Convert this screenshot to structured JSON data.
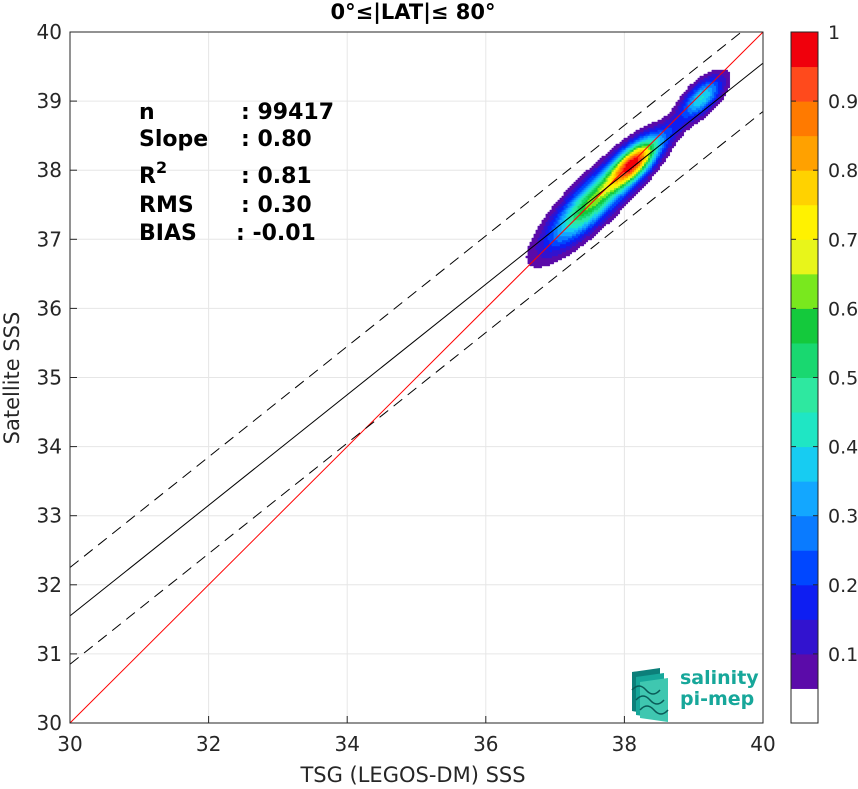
{
  "chart_data": {
    "type": "contour-density-scatter",
    "title": "0°≤|LAT|≤ 80°",
    "xlabel": "TSG (LEGOS-DM) SSS",
    "ylabel": "Satellite SSS",
    "xlim": [
      30,
      40
    ],
    "ylim": [
      30,
      40
    ],
    "xticks": [
      30,
      32,
      34,
      36,
      38,
      40
    ],
    "yticks": [
      30,
      31,
      32,
      33,
      34,
      35,
      36,
      37,
      38,
      39,
      40
    ],
    "grid": true,
    "stats": [
      {
        "name": "n",
        "sup": "",
        "value": ": 99417"
      },
      {
        "name": "Slope",
        "sup": "",
        "value": ": 0.80"
      },
      {
        "name": "R",
        "sup": "2",
        "value": ": 0.81"
      },
      {
        "name": "RMS",
        "sup": "",
        "value": ": 0.30"
      },
      {
        "name": "BIAS",
        "sup": "",
        "value": ": -0.01"
      }
    ],
    "lines": [
      {
        "kind": "identity",
        "x": [
          30,
          40
        ],
        "y": [
          30,
          40
        ],
        "color": "#ff0000",
        "style": "solid"
      },
      {
        "kind": "regression",
        "x": [
          30,
          40
        ],
        "y": [
          31.55,
          39.55
        ],
        "color": "#000000",
        "style": "solid"
      },
      {
        "kind": "regression-plus-sigma",
        "x": [
          30,
          40
        ],
        "y": [
          32.25,
          40.25
        ],
        "color": "#000000",
        "style": "dashed"
      },
      {
        "kind": "regression-minus-sigma",
        "x": [
          30,
          40
        ],
        "y": [
          30.85,
          38.85
        ],
        "color": "#000000",
        "style": "dashed"
      }
    ],
    "density_clusters": [
      {
        "cx": 37.55,
        "cy": 37.55,
        "su": 0.58,
        "sv": 0.17,
        "amp": 0.62
      },
      {
        "cx": 38.15,
        "cy": 38.12,
        "su": 0.3,
        "sv": 0.13,
        "amp": 0.78
      },
      {
        "cx": 39.12,
        "cy": 39.05,
        "su": 0.26,
        "sv": 0.12,
        "amp": 0.4
      },
      {
        "cx": 38.65,
        "cy": 38.55,
        "su": 0.25,
        "sv": 0.1,
        "amp": 0.12
      }
    ],
    "colorbar": {
      "ticks": [
        0.1,
        0.2,
        0.3,
        0.4,
        0.5,
        0.6,
        0.7,
        0.8,
        0.9,
        1
      ],
      "tick_labels": [
        "0.1",
        "0.2",
        "0.3",
        "0.4",
        "0.5",
        "0.6",
        "0.7",
        "0.8",
        "0.9",
        "1"
      ],
      "levels": [
        0,
        0.05,
        0.1,
        0.15,
        0.2,
        0.25,
        0.3,
        0.35,
        0.4,
        0.45,
        0.5,
        0.55,
        0.6,
        0.65,
        0.7,
        0.75,
        0.8,
        0.85,
        0.9,
        0.95,
        1
      ],
      "colors": [
        "#ffffff",
        "#5b0ba9",
        "#3213cf",
        "#0e1ef2",
        "#0047ff",
        "#0a7bff",
        "#13a7ff",
        "#17ccf2",
        "#1fe6c4",
        "#2ee8a0",
        "#19d870",
        "#14c93c",
        "#79e81e",
        "#e8f51a",
        "#fff200",
        "#ffd200",
        "#ffa100",
        "#ff7a00",
        "#ff4a1c",
        "#f0000c",
        "#8e0000"
      ]
    }
  },
  "logo": {
    "line1": "salinity",
    "line2": "pi-mep"
  }
}
